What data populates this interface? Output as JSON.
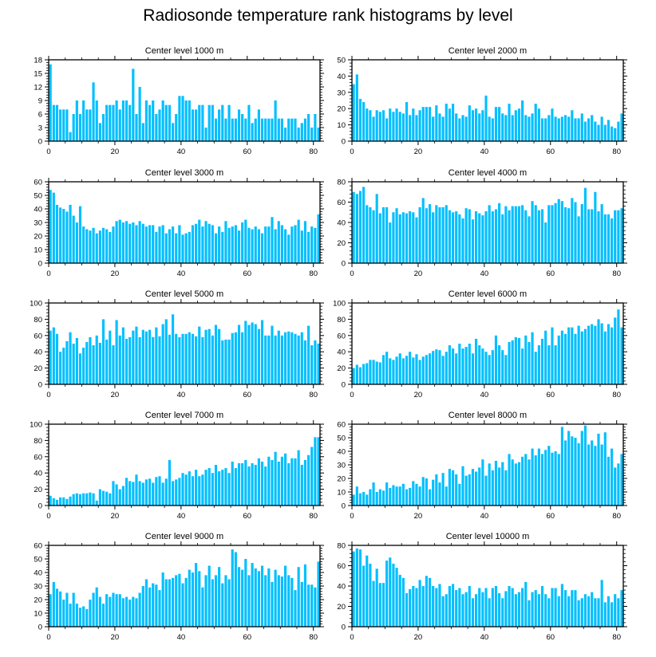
{
  "title": "Radiosonde temperature rank histograms by level",
  "bar_color": "#00bfff",
  "chart_data": [
    {
      "type": "bar",
      "title": "Center level 1000 m",
      "xlim": [
        0,
        82
      ],
      "ylim": [
        0,
        18
      ],
      "xticks": [
        0,
        20,
        40,
        60,
        80
      ],
      "yticks": [
        0,
        3,
        6,
        9,
        12,
        15,
        18
      ],
      "values": [
        17,
        8,
        8,
        7,
        7,
        7,
        2,
        6,
        9,
        6,
        9,
        7,
        7,
        13,
        9,
        4,
        6,
        8,
        8,
        8,
        9,
        7,
        9,
        9,
        8,
        16,
        6,
        12,
        4,
        9,
        8,
        9,
        6,
        7,
        9,
        8,
        8,
        4,
        6,
        10,
        10,
        9,
        9,
        7,
        7,
        8,
        8,
        3,
        8,
        8,
        5,
        7,
        8,
        5,
        8,
        5,
        5,
        7,
        6,
        5,
        8,
        4,
        5,
        7,
        5,
        5,
        5,
        5,
        9,
        5,
        5,
        3,
        5,
        5,
        5,
        3,
        4,
        5,
        6,
        3,
        6,
        3
      ]
    },
    {
      "type": "bar",
      "title": "Center level 2000 m",
      "xlim": [
        0,
        82
      ],
      "ylim": [
        0,
        50
      ],
      "xticks": [
        0,
        20,
        40,
        60,
        80
      ],
      "yticks": [
        0,
        10,
        20,
        30,
        40,
        50
      ],
      "values": [
        35,
        41,
        26,
        24,
        20,
        19,
        15,
        19,
        18,
        19,
        14,
        20,
        18,
        20,
        18,
        17,
        24,
        16,
        20,
        16,
        19,
        21,
        21,
        21,
        15,
        22,
        17,
        15,
        23,
        20,
        23,
        17,
        14,
        16,
        15,
        22,
        19,
        20,
        17,
        19,
        28,
        15,
        14,
        21,
        21,
        17,
        16,
        23,
        16,
        19,
        20,
        25,
        16,
        15,
        17,
        23,
        20,
        14,
        14,
        16,
        20,
        15,
        14,
        15,
        16,
        15,
        19,
        14,
        14,
        17,
        12,
        14,
        16,
        12,
        10,
        15,
        10,
        13,
        9,
        8,
        12,
        17
      ]
    },
    {
      "type": "bar",
      "title": "Center level 3000 m",
      "xlim": [
        0,
        82
      ],
      "ylim": [
        0,
        60
      ],
      "xticks": [
        0,
        20,
        40,
        60,
        80
      ],
      "yticks": [
        0,
        10,
        20,
        30,
        40,
        50,
        60
      ],
      "values": [
        54,
        52,
        43,
        41,
        40,
        38,
        43,
        35,
        30,
        42,
        27,
        25,
        24,
        26,
        22,
        24,
        26,
        25,
        23,
        27,
        31,
        32,
        30,
        31,
        29,
        30,
        28,
        31,
        29,
        27,
        28,
        28,
        23,
        27,
        28,
        22,
        25,
        27,
        22,
        28,
        21,
        22,
        23,
        28,
        29,
        32,
        27,
        31,
        29,
        28,
        22,
        27,
        23,
        31,
        26,
        27,
        28,
        24,
        30,
        32,
        26,
        25,
        27,
        25,
        22,
        27,
        27,
        34,
        25,
        31,
        28,
        25,
        21,
        27,
        28,
        32,
        24,
        31,
        23,
        27,
        26,
        36
      ]
    },
    {
      "type": "bar",
      "title": "Center level 4000 m",
      "xlim": [
        0,
        82
      ],
      "ylim": [
        0,
        80
      ],
      "xticks": [
        0,
        20,
        40,
        60,
        80
      ],
      "yticks": [
        0,
        20,
        40,
        60,
        80
      ],
      "values": [
        70,
        68,
        71,
        75,
        57,
        55,
        52,
        68,
        49,
        55,
        55,
        40,
        50,
        54,
        48,
        50,
        49,
        51,
        50,
        45,
        55,
        64,
        54,
        58,
        50,
        57,
        55,
        55,
        57,
        52,
        50,
        51,
        48,
        44,
        54,
        53,
        43,
        51,
        49,
        47,
        51,
        57,
        51,
        53,
        59,
        48,
        56,
        52,
        56,
        56,
        56,
        57,
        52,
        46,
        61,
        57,
        52,
        53,
        40,
        57,
        57,
        59,
        63,
        61,
        55,
        54,
        64,
        60,
        46,
        58,
        74,
        53,
        53,
        70,
        51,
        58,
        48,
        48,
        44,
        52,
        52,
        54
      ]
    },
    {
      "type": "bar",
      "title": "Center level 5000 m",
      "xlim": [
        0,
        82
      ],
      "ylim": [
        0,
        100
      ],
      "xticks": [
        0,
        20,
        40,
        60,
        80
      ],
      "yticks": [
        0,
        20,
        40,
        60,
        80,
        100
      ],
      "values": [
        66,
        70,
        62,
        40,
        45,
        53,
        64,
        50,
        57,
        38,
        45,
        52,
        58,
        48,
        60,
        51,
        80,
        55,
        66,
        48,
        79,
        60,
        70,
        56,
        58,
        66,
        71,
        58,
        67,
        65,
        67,
        58,
        70,
        59,
        74,
        80,
        61,
        86,
        62,
        58,
        62,
        62,
        64,
        62,
        59,
        71,
        58,
        67,
        68,
        60,
        73,
        68,
        54,
        55,
        55,
        63,
        64,
        73,
        64,
        78,
        73,
        76,
        74,
        68,
        79,
        60,
        60,
        72,
        60,
        66,
        60,
        64,
        65,
        64,
        62,
        60,
        64,
        54,
        72,
        48,
        54,
        50
      ]
    },
    {
      "type": "bar",
      "title": "Center level 6000 m",
      "xlim": [
        0,
        82
      ],
      "ylim": [
        0,
        100
      ],
      "xticks": [
        0,
        20,
        40,
        60,
        80
      ],
      "yticks": [
        0,
        20,
        40,
        60,
        80,
        100
      ],
      "values": [
        20,
        24,
        21,
        25,
        26,
        30,
        30,
        28,
        27,
        36,
        40,
        32,
        30,
        34,
        38,
        32,
        35,
        40,
        33,
        37,
        30,
        34,
        36,
        38,
        41,
        43,
        42,
        35,
        40,
        48,
        44,
        38,
        50,
        44,
        46,
        50,
        38,
        56,
        48,
        44,
        40,
        36,
        42,
        60,
        48,
        42,
        36,
        52,
        54,
        58,
        57,
        44,
        60,
        52,
        64,
        40,
        48,
        56,
        66,
        48,
        70,
        48,
        60,
        66,
        62,
        70,
        70,
        62,
        72,
        65,
        68,
        72,
        74,
        72,
        80,
        75,
        65,
        74,
        70,
        82,
        92,
        70
      ]
    },
    {
      "type": "bar",
      "title": "Center level 7000 m",
      "xlim": [
        0,
        82
      ],
      "ylim": [
        0,
        100
      ],
      "xticks": [
        0,
        20,
        40,
        60,
        80
      ],
      "yticks": [
        0,
        20,
        40,
        60,
        80,
        100
      ],
      "values": [
        12,
        9,
        7,
        10,
        10,
        8,
        11,
        14,
        15,
        14,
        15,
        15,
        16,
        15,
        6,
        20,
        18,
        17,
        15,
        30,
        26,
        20,
        24,
        34,
        30,
        29,
        38,
        30,
        28,
        32,
        33,
        28,
        35,
        36,
        28,
        33,
        56,
        30,
        32,
        34,
        40,
        38,
        42,
        36,
        44,
        36,
        38,
        44,
        46,
        40,
        50,
        42,
        44,
        46,
        40,
        54,
        46,
        52,
        52,
        56,
        48,
        52,
        50,
        58,
        54,
        48,
        60,
        56,
        66,
        54,
        60,
        64,
        52,
        58,
        58,
        68,
        50,
        56,
        62,
        72,
        84,
        84
      ]
    },
    {
      "type": "bar",
      "title": "Center level 8000 m",
      "xlim": [
        0,
        82
      ],
      "ylim": [
        0,
        60
      ],
      "xticks": [
        0,
        20,
        40,
        60,
        80
      ],
      "yticks": [
        0,
        10,
        20,
        30,
        40,
        50,
        60
      ],
      "values": [
        8,
        14,
        9,
        10,
        8,
        12,
        17,
        10,
        12,
        11,
        17,
        13,
        15,
        14,
        14,
        16,
        12,
        13,
        18,
        16,
        14,
        21,
        20,
        12,
        19,
        23,
        17,
        24,
        14,
        27,
        26,
        23,
        16,
        29,
        22,
        23,
        27,
        25,
        28,
        34,
        22,
        31,
        26,
        33,
        28,
        32,
        26,
        38,
        34,
        31,
        32,
        36,
        38,
        34,
        42,
        37,
        42,
        38,
        41,
        44,
        39,
        40,
        38,
        58,
        48,
        55,
        51,
        50,
        46,
        55,
        59,
        45,
        48,
        44,
        53,
        45,
        54,
        36,
        42,
        28,
        31,
        38
      ]
    },
    {
      "type": "bar",
      "title": "Center level 9000 m",
      "xlim": [
        0,
        82
      ],
      "ylim": [
        0,
        60
      ],
      "xticks": [
        0,
        20,
        40,
        60,
        80
      ],
      "yticks": [
        0,
        10,
        20,
        30,
        40,
        50,
        60
      ],
      "values": [
        24,
        33,
        28,
        26,
        20,
        25,
        17,
        25,
        17,
        14,
        15,
        13,
        20,
        25,
        29,
        22,
        17,
        24,
        22,
        25,
        24,
        24,
        21,
        22,
        20,
        22,
        21,
        25,
        30,
        35,
        29,
        32,
        31,
        27,
        40,
        35,
        35,
        36,
        38,
        39,
        32,
        36,
        42,
        40,
        47,
        41,
        29,
        38,
        45,
        35,
        38,
        44,
        32,
        38,
        35,
        57,
        55,
        44,
        42,
        50,
        38,
        47,
        43,
        41,
        45,
        38,
        43,
        33,
        42,
        38,
        37,
        45,
        38,
        36,
        27,
        44,
        33,
        46,
        31,
        31,
        29,
        48
      ]
    },
    {
      "type": "bar",
      "title": "Center level 10000 m",
      "xlim": [
        0,
        82
      ],
      "ylim": [
        0,
        80
      ],
      "xticks": [
        0,
        20,
        40,
        60,
        80
      ],
      "yticks": [
        0,
        20,
        40,
        60,
        80
      ],
      "values": [
        74,
        77,
        76,
        60,
        70,
        62,
        45,
        57,
        43,
        43,
        65,
        68,
        62,
        58,
        51,
        48,
        33,
        37,
        40,
        38,
        46,
        40,
        50,
        48,
        40,
        38,
        42,
        30,
        32,
        40,
        42,
        36,
        38,
        32,
        34,
        40,
        28,
        32,
        38,
        34,
        38,
        28,
        38,
        40,
        33,
        28,
        35,
        40,
        38,
        32,
        34,
        38,
        44,
        26,
        34,
        36,
        32,
        40,
        32,
        28,
        38,
        38,
        30,
        42,
        36,
        30,
        36,
        36,
        26,
        28,
        32,
        30,
        34,
        28,
        28,
        46,
        24,
        30,
        24,
        32,
        28,
        36
      ]
    }
  ]
}
